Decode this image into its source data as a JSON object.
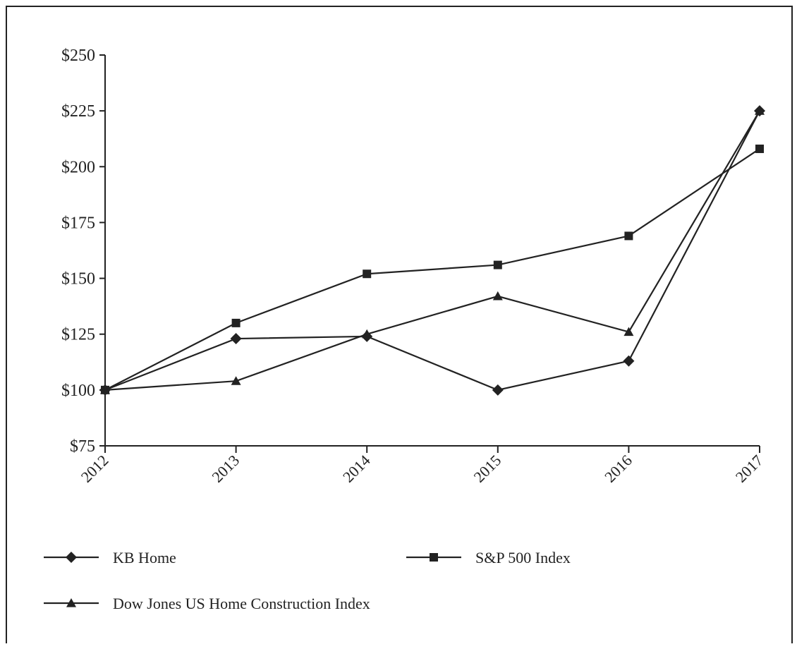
{
  "chart_data": {
    "type": "line",
    "title": "",
    "xlabel": "",
    "ylabel": "",
    "x": [
      "2012",
      "2013",
      "2014",
      "2015",
      "2016",
      "2017"
    ],
    "ylim": [
      75,
      250
    ],
    "yticks": [
      75,
      100,
      125,
      150,
      175,
      200,
      225,
      250
    ],
    "ytick_labels": [
      "$75",
      "$100",
      "$125",
      "$150",
      "$175",
      "$200",
      "$225",
      "$250"
    ],
    "grid": false,
    "legend_position": "bottom",
    "series": [
      {
        "name": "KB Home",
        "marker": "diamond",
        "values": [
          100,
          123,
          124,
          100,
          113,
          225
        ]
      },
      {
        "name": "S&P 500 Index",
        "marker": "square",
        "values": [
          100,
          130,
          152,
          156,
          169,
          208
        ]
      },
      {
        "name": "Dow Jones US Home Construction Index",
        "marker": "triangle",
        "values": [
          100,
          104,
          125,
          142,
          126,
          225
        ]
      }
    ],
    "line_color": "#222222"
  }
}
